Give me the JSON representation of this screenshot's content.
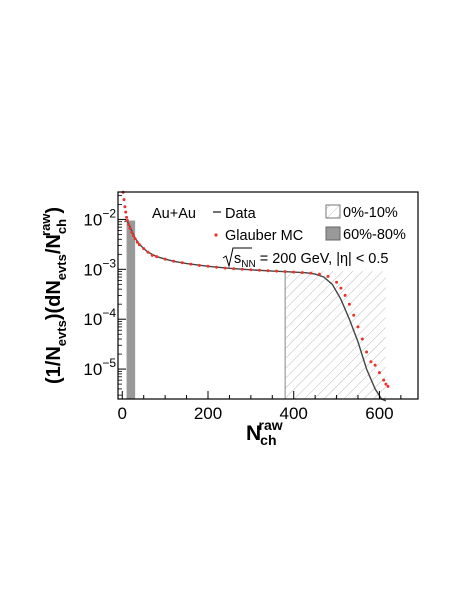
{
  "chart_data": {
    "type": "scatter",
    "title": "",
    "xlabel": {
      "main": "N",
      "sub": "ch",
      "sup": "raw"
    },
    "ylabel": {
      "parts": [
        "(1/N",
        "evts",
        ")(dN",
        "evts",
        "/N",
        "ch",
        "raw",
        ")"
      ]
    },
    "xlim": [
      -10,
      690
    ],
    "ylim_log10": [
      -5.6,
      -1.45
    ],
    "yscale": "log",
    "grid": false,
    "legend": "top-right",
    "x_ticks": [
      {
        "value": 0,
        "label": "0"
      },
      {
        "value": 200,
        "label": "200"
      },
      {
        "value": 400,
        "label": "400"
      },
      {
        "value": 600,
        "label": "600"
      }
    ],
    "y_ticks": [
      {
        "exp": -2,
        "label_base": "10",
        "label_exp": "−2"
      },
      {
        "exp": -3,
        "label_base": "10",
        "label_exp": "−3"
      },
      {
        "exp": -4,
        "label_base": "10",
        "label_exp": "−4"
      },
      {
        "exp": -5,
        "label_base": "10",
        "label_exp": "−5"
      }
    ],
    "annotations": {
      "system": "Au+Au",
      "energy_prefix": "s",
      "energy_sub": "NN",
      "energy_suffix": " = 200 GeV, |η| < 0.5"
    },
    "legend_entries": [
      {
        "key": "data",
        "label": "Data"
      },
      {
        "key": "glauber",
        "label": "Glauber MC"
      },
      {
        "key": "central",
        "label": "0%-10%"
      },
      {
        "key": "peripheral",
        "label": "60%-80%"
      }
    ],
    "bands": {
      "central_0_10": [
        380,
        615
      ],
      "peripheral_60_80": [
        10,
        30
      ]
    },
    "colors": {
      "data": "#444444",
      "glauber": "#e8342b",
      "peripheral_fill": "#999999",
      "central_hatch": "#bbbbbb"
    },
    "series": [
      {
        "name": "Data",
        "style": "line",
        "x": [
          5,
          10,
          15,
          20,
          25,
          30,
          40,
          50,
          60,
          80,
          100,
          120,
          150,
          200,
          250,
          300,
          350,
          400,
          430,
          450,
          470,
          490,
          510,
          530,
          550,
          570,
          590,
          605,
          615
        ],
        "y": [
          0.009,
          0.0095,
          0.0082,
          0.0065,
          0.0052,
          0.0042,
          0.0032,
          0.0026,
          0.0022,
          0.0018,
          0.0016,
          0.00145,
          0.0013,
          0.00115,
          0.00105,
          0.00098,
          0.00092,
          0.00088,
          0.00085,
          0.0008,
          0.0007,
          0.0005,
          0.00025,
          0.0001,
          3.5e-05,
          1e-05,
          4e-06,
          2.5e-06,
          2.3e-06
        ]
      },
      {
        "name": "Glauber MC",
        "style": "points",
        "x": [
          2,
          4,
          6,
          8,
          10,
          12,
          15,
          18,
          22,
          26,
          30,
          35,
          40,
          50,
          60,
          70,
          80,
          100,
          120,
          140,
          160,
          180,
          200,
          220,
          240,
          260,
          280,
          300,
          320,
          340,
          360,
          380,
          400,
          420,
          440,
          460,
          480,
          500,
          510,
          520,
          530,
          540,
          550,
          560,
          570,
          580,
          590,
          600,
          610,
          615,
          620
        ],
        "y": [
          0.035,
          0.025,
          0.018,
          0.014,
          0.011,
          0.0095,
          0.0078,
          0.0066,
          0.0055,
          0.0047,
          0.0041,
          0.0035,
          0.0031,
          0.0026,
          0.0022,
          0.0019,
          0.0018,
          0.0016,
          0.00145,
          0.00135,
          0.00127,
          0.0012,
          0.00115,
          0.0011,
          0.00106,
          0.00103,
          0.001,
          0.00098,
          0.00096,
          0.00094,
          0.00092,
          0.0009,
          0.00088,
          0.00086,
          0.00084,
          0.0008,
          0.00072,
          0.00055,
          0.00042,
          0.0003,
          0.0002,
          0.00012,
          7e-05,
          4e-05,
          2.2e-05,
          1.4e-05,
          1.2e-05,
          8.5e-06,
          6e-06,
          5e-06,
          4.5e-06
        ]
      }
    ]
  }
}
